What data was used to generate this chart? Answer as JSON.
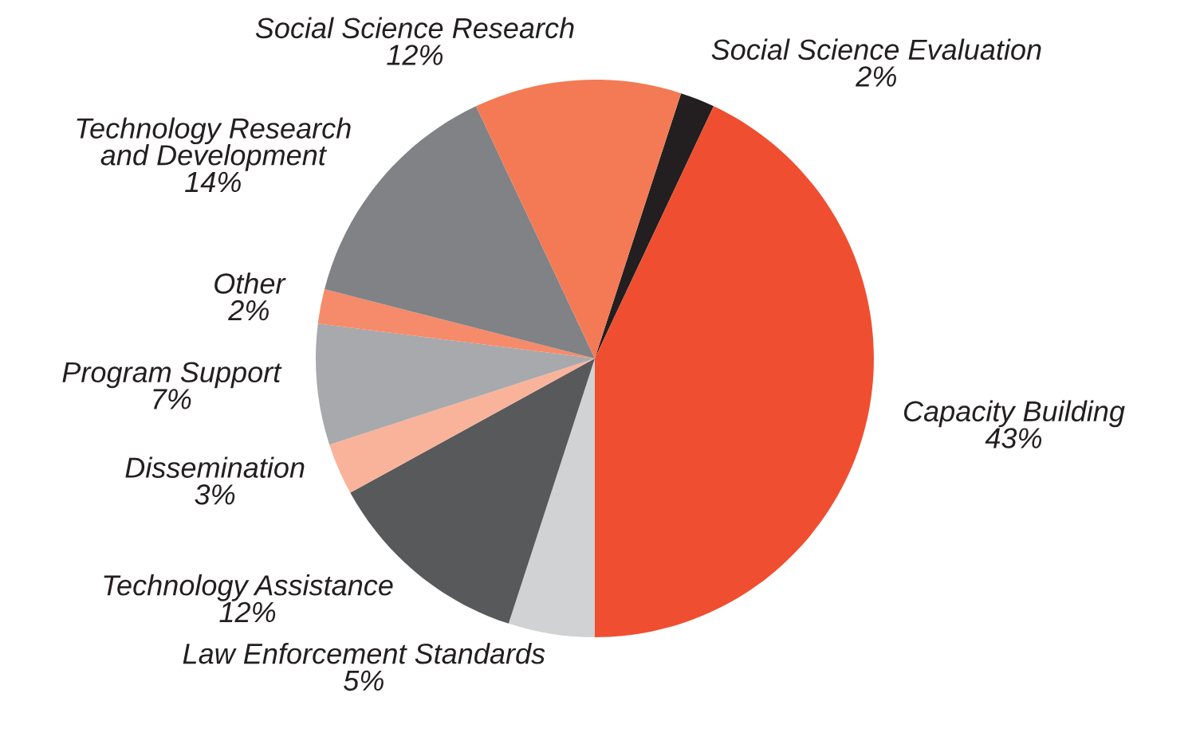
{
  "chart_data": {
    "type": "pie",
    "categories": [
      "Social Science Evaluation",
      "Capacity Building",
      "Law Enforcement Standards",
      "Technology Assistance",
      "Dissemination",
      "Program Support",
      "Other",
      "Technology Research and Development",
      "Social Science Research"
    ],
    "values": [
      2,
      43,
      5,
      12,
      3,
      7,
      2,
      14,
      12
    ],
    "colors": [
      "#231f20",
      "#f04e30",
      "#d1d2d4",
      "#58595b",
      "#f9b39a",
      "#a7a9ac",
      "#f58b6a",
      "#808285",
      "#f37a55"
    ],
    "value_labels": [
      "2%",
      "43%",
      "5%",
      "12%",
      "3%",
      "7%",
      "2%",
      "14%",
      "12%"
    ],
    "legend": false
  }
}
